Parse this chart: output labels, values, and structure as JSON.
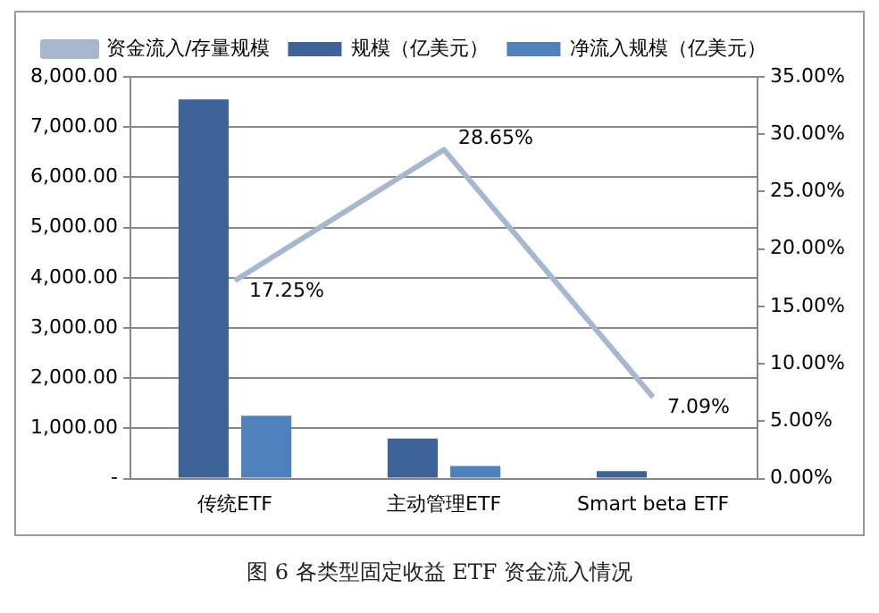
{
  "chart_data": {
    "type": "bar",
    "categories": [
      "传统ETF",
      "主动管理ETF",
      "Smart beta ETF"
    ],
    "series": [
      {
        "name": "规模（亿美元）",
        "color": "#3d6399",
        "values": [
          7550,
          800,
          150
        ]
      },
      {
        "name": "净流入规模（亿美元）",
        "color": "#4f81bd",
        "values": [
          1250,
          250,
          null
        ]
      },
      {
        "name": "资金流入/存量规模",
        "type": "line",
        "axis": "y2",
        "color": "#a6b7d0",
        "values": [
          17.25,
          28.65,
          7.09
        ],
        "value_labels": [
          "17.25%",
          "28.65%",
          "7.09%"
        ]
      }
    ],
    "ylim": [
      0,
      8000
    ],
    "yticks": [
      {
        "value": 0,
        "label": "-"
      },
      {
        "value": 1000,
        "label": "1,000.00"
      },
      {
        "value": 2000,
        "label": "2,000.00"
      },
      {
        "value": 3000,
        "label": "3,000.00"
      },
      {
        "value": 4000,
        "label": "4,000.00"
      },
      {
        "value": 5000,
        "label": "5,000.00"
      },
      {
        "value": 6000,
        "label": "6,000.00"
      },
      {
        "value": 7000,
        "label": "7,000.00"
      },
      {
        "value": 8000,
        "label": "8,000.00"
      }
    ],
    "y2lim": [
      0,
      35
    ],
    "y2ticks": [
      {
        "value": 0,
        "label": "0.00%"
      },
      {
        "value": 5,
        "label": "5.00%"
      },
      {
        "value": 10,
        "label": "10.00%"
      },
      {
        "value": 15,
        "label": "15.00%"
      },
      {
        "value": 20,
        "label": "20.00%"
      },
      {
        "value": 25,
        "label": "25.00%"
      },
      {
        "value": 30,
        "label": "30.00%"
      },
      {
        "value": 35,
        "label": "35.00%"
      }
    ],
    "grid": "y",
    "legend": "top",
    "marker": "none",
    "annotations": [
      "图 6 各类型固定收益 ETF 资金流入情况"
    ]
  }
}
